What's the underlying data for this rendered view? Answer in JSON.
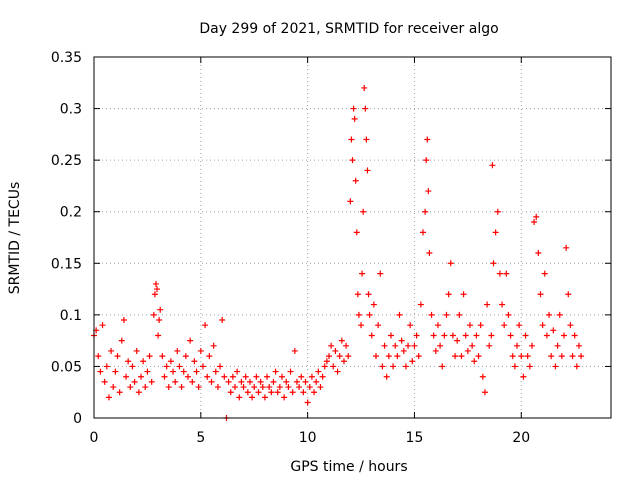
{
  "chart_data": {
    "type": "scatter",
    "title": "Day 299 of 2021, SRMTID for receiver algo",
    "xlabel": "GPS time / hours",
    "ylabel": "SRMTID / TECUs",
    "xlim": [
      0,
      24.2
    ],
    "ylim": [
      0,
      0.35
    ],
    "xticks": [
      0,
      5,
      10,
      15,
      20
    ],
    "xtick_labels": [
      "0",
      "5",
      "10",
      "15",
      "20"
    ],
    "yticks": [
      0,
      0.05,
      0.1,
      0.15,
      0.2,
      0.25,
      0.3,
      0.35
    ],
    "ytick_labels": [
      "0",
      "0.05",
      "0.1",
      "0.15",
      "0.2",
      "0.25",
      "0.3",
      "0.35"
    ],
    "grid": true,
    "marker": "+",
    "series": [
      {
        "name": "SRMTID",
        "color": "#ff0000",
        "points": [
          [
            0.0,
            0.08
          ],
          [
            0.1,
            0.085
          ],
          [
            0.2,
            0.06
          ],
          [
            0.3,
            0.045
          ],
          [
            0.4,
            0.09
          ],
          [
            0.5,
            0.035
          ],
          [
            0.6,
            0.05
          ],
          [
            0.7,
            0.02
          ],
          [
            0.8,
            0.065
          ],
          [
            0.9,
            0.03
          ],
          [
            1.0,
            0.045
          ],
          [
            1.1,
            0.06
          ],
          [
            1.2,
            0.025
          ],
          [
            1.3,
            0.075
          ],
          [
            1.4,
            0.095
          ],
          [
            1.5,
            0.04
          ],
          [
            1.6,
            0.055
          ],
          [
            1.7,
            0.03
          ],
          [
            1.8,
            0.05
          ],
          [
            1.9,
            0.035
          ],
          [
            2.0,
            0.065
          ],
          [
            2.1,
            0.025
          ],
          [
            2.2,
            0.04
          ],
          [
            2.3,
            0.055
          ],
          [
            2.4,
            0.03
          ],
          [
            2.5,
            0.045
          ],
          [
            2.6,
            0.06
          ],
          [
            2.7,
            0.035
          ],
          [
            2.8,
            0.1
          ],
          [
            2.85,
            0.12
          ],
          [
            2.9,
            0.13
          ],
          [
            2.95,
            0.125
          ],
          [
            3.0,
            0.08
          ],
          [
            3.05,
            0.095
          ],
          [
            3.1,
            0.105
          ],
          [
            3.2,
            0.06
          ],
          [
            3.3,
            0.04
          ],
          [
            3.4,
            0.05
          ],
          [
            3.5,
            0.03
          ],
          [
            3.6,
            0.055
          ],
          [
            3.7,
            0.045
          ],
          [
            3.8,
            0.035
          ],
          [
            3.9,
            0.065
          ],
          [
            4.0,
            0.05
          ],
          [
            4.1,
            0.03
          ],
          [
            4.2,
            0.045
          ],
          [
            4.3,
            0.06
          ],
          [
            4.4,
            0.04
          ],
          [
            4.5,
            0.075
          ],
          [
            4.6,
            0.035
          ],
          [
            4.7,
            0.055
          ],
          [
            4.8,
            0.045
          ],
          [
            4.9,
            0.03
          ],
          [
            5.0,
            0.065
          ],
          [
            5.1,
            0.05
          ],
          [
            5.2,
            0.09
          ],
          [
            5.3,
            0.04
          ],
          [
            5.4,
            0.06
          ],
          [
            5.5,
            0.035
          ],
          [
            5.6,
            0.07
          ],
          [
            5.7,
            0.045
          ],
          [
            5.8,
            0.03
          ],
          [
            5.9,
            0.05
          ],
          [
            6.0,
            0.095
          ],
          [
            6.1,
            0.04
          ],
          [
            6.2,
            0.0
          ],
          [
            6.3,
            0.035
          ],
          [
            6.4,
            0.025
          ],
          [
            6.5,
            0.04
          ],
          [
            6.6,
            0.03
          ],
          [
            6.7,
            0.045
          ],
          [
            6.8,
            0.02
          ],
          [
            6.9,
            0.035
          ],
          [
            7.0,
            0.03
          ],
          [
            7.1,
            0.04
          ],
          [
            7.2,
            0.025
          ],
          [
            7.3,
            0.035
          ],
          [
            7.4,
            0.02
          ],
          [
            7.5,
            0.03
          ],
          [
            7.6,
            0.04
          ],
          [
            7.7,
            0.025
          ],
          [
            7.8,
            0.035
          ],
          [
            7.9,
            0.03
          ],
          [
            8.0,
            0.02
          ],
          [
            8.1,
            0.04
          ],
          [
            8.2,
            0.03
          ],
          [
            8.3,
            0.025
          ],
          [
            8.4,
            0.035
          ],
          [
            8.5,
            0.045
          ],
          [
            8.6,
            0.025
          ],
          [
            8.7,
            0.03
          ],
          [
            8.8,
            0.04
          ],
          [
            8.9,
            0.02
          ],
          [
            9.0,
            0.035
          ],
          [
            9.1,
            0.03
          ],
          [
            9.2,
            0.045
          ],
          [
            9.3,
            0.025
          ],
          [
            9.4,
            0.065
          ],
          [
            9.5,
            0.035
          ],
          [
            9.6,
            0.03
          ],
          [
            9.7,
            0.04
          ],
          [
            9.8,
            0.025
          ],
          [
            9.9,
            0.035
          ],
          [
            10.0,
            0.015
          ],
          [
            10.1,
            0.03
          ],
          [
            10.2,
            0.04
          ],
          [
            10.3,
            0.025
          ],
          [
            10.4,
            0.035
          ],
          [
            10.5,
            0.045
          ],
          [
            10.6,
            0.03
          ],
          [
            10.7,
            0.04
          ],
          [
            10.8,
            0.05
          ],
          [
            10.9,
            0.055
          ],
          [
            11.0,
            0.06
          ],
          [
            11.1,
            0.07
          ],
          [
            11.2,
            0.05
          ],
          [
            11.3,
            0.065
          ],
          [
            11.4,
            0.045
          ],
          [
            11.5,
            0.06
          ],
          [
            11.6,
            0.075
          ],
          [
            11.7,
            0.055
          ],
          [
            11.8,
            0.07
          ],
          [
            11.9,
            0.06
          ],
          [
            12.0,
            0.21
          ],
          [
            12.05,
            0.27
          ],
          [
            12.1,
            0.25
          ],
          [
            12.15,
            0.3
          ],
          [
            12.2,
            0.29
          ],
          [
            12.25,
            0.23
          ],
          [
            12.3,
            0.18
          ],
          [
            12.35,
            0.12
          ],
          [
            12.4,
            0.1
          ],
          [
            12.5,
            0.09
          ],
          [
            12.55,
            0.14
          ],
          [
            12.6,
            0.2
          ],
          [
            12.65,
            0.32
          ],
          [
            12.7,
            0.3
          ],
          [
            12.75,
            0.27
          ],
          [
            12.8,
            0.24
          ],
          [
            12.85,
            0.12
          ],
          [
            12.9,
            0.1
          ],
          [
            13.0,
            0.08
          ],
          [
            13.1,
            0.11
          ],
          [
            13.2,
            0.06
          ],
          [
            13.3,
            0.09
          ],
          [
            13.4,
            0.14
          ],
          [
            13.5,
            0.05
          ],
          [
            13.6,
            0.07
          ],
          [
            13.7,
            0.04
          ],
          [
            13.8,
            0.06
          ],
          [
            13.9,
            0.08
          ],
          [
            14.0,
            0.05
          ],
          [
            14.1,
            0.07
          ],
          [
            14.2,
            0.06
          ],
          [
            14.3,
            0.1
          ],
          [
            14.4,
            0.075
          ],
          [
            14.5,
            0.065
          ],
          [
            14.6,
            0.05
          ],
          [
            14.7,
            0.07
          ],
          [
            14.8,
            0.09
          ],
          [
            14.9,
            0.055
          ],
          [
            15.0,
            0.07
          ],
          [
            15.1,
            0.08
          ],
          [
            15.2,
            0.06
          ],
          [
            15.3,
            0.11
          ],
          [
            15.4,
            0.18
          ],
          [
            15.5,
            0.2
          ],
          [
            15.55,
            0.25
          ],
          [
            15.6,
            0.27
          ],
          [
            15.65,
            0.22
          ],
          [
            15.7,
            0.16
          ],
          [
            15.8,
            0.1
          ],
          [
            15.9,
            0.08
          ],
          [
            16.0,
            0.065
          ],
          [
            16.1,
            0.09
          ],
          [
            16.2,
            0.07
          ],
          [
            16.3,
            0.05
          ],
          [
            16.4,
            0.08
          ],
          [
            16.5,
            0.1
          ],
          [
            16.6,
            0.12
          ],
          [
            16.7,
            0.15
          ],
          [
            16.8,
            0.08
          ],
          [
            16.9,
            0.06
          ],
          [
            17.0,
            0.075
          ],
          [
            17.1,
            0.1
          ],
          [
            17.2,
            0.06
          ],
          [
            17.3,
            0.12
          ],
          [
            17.4,
            0.08
          ],
          [
            17.5,
            0.065
          ],
          [
            17.6,
            0.09
          ],
          [
            17.7,
            0.07
          ],
          [
            17.8,
            0.055
          ],
          [
            17.9,
            0.08
          ],
          [
            18.0,
            0.06
          ],
          [
            18.1,
            0.09
          ],
          [
            18.2,
            0.04
          ],
          [
            18.3,
            0.025
          ],
          [
            18.4,
            0.11
          ],
          [
            18.5,
            0.07
          ],
          [
            18.6,
            0.08
          ],
          [
            18.65,
            0.245
          ],
          [
            18.7,
            0.15
          ],
          [
            18.8,
            0.18
          ],
          [
            18.9,
            0.2
          ],
          [
            19.0,
            0.14
          ],
          [
            19.1,
            0.11
          ],
          [
            19.2,
            0.09
          ],
          [
            19.3,
            0.14
          ],
          [
            19.4,
            0.1
          ],
          [
            19.5,
            0.08
          ],
          [
            19.6,
            0.06
          ],
          [
            19.7,
            0.05
          ],
          [
            19.8,
            0.07
          ],
          [
            19.9,
            0.09
          ],
          [
            20.0,
            0.06
          ],
          [
            20.1,
            0.04
          ],
          [
            20.2,
            0.08
          ],
          [
            20.3,
            0.06
          ],
          [
            20.4,
            0.05
          ],
          [
            20.5,
            0.07
          ],
          [
            20.6,
            0.19
          ],
          [
            20.7,
            0.195
          ],
          [
            20.8,
            0.16
          ],
          [
            20.9,
            0.12
          ],
          [
            21.0,
            0.09
          ],
          [
            21.1,
            0.14
          ],
          [
            21.2,
            0.08
          ],
          [
            21.3,
            0.1
          ],
          [
            21.4,
            0.06
          ],
          [
            21.5,
            0.085
          ],
          [
            21.6,
            0.05
          ],
          [
            21.7,
            0.07
          ],
          [
            21.8,
            0.1
          ],
          [
            21.9,
            0.06
          ],
          [
            22.0,
            0.08
          ],
          [
            22.1,
            0.165
          ],
          [
            22.2,
            0.12
          ],
          [
            22.3,
            0.09
          ],
          [
            22.4,
            0.06
          ],
          [
            22.5,
            0.08
          ],
          [
            22.6,
            0.05
          ],
          [
            22.7,
            0.07
          ],
          [
            22.8,
            0.06
          ]
        ]
      }
    ]
  }
}
